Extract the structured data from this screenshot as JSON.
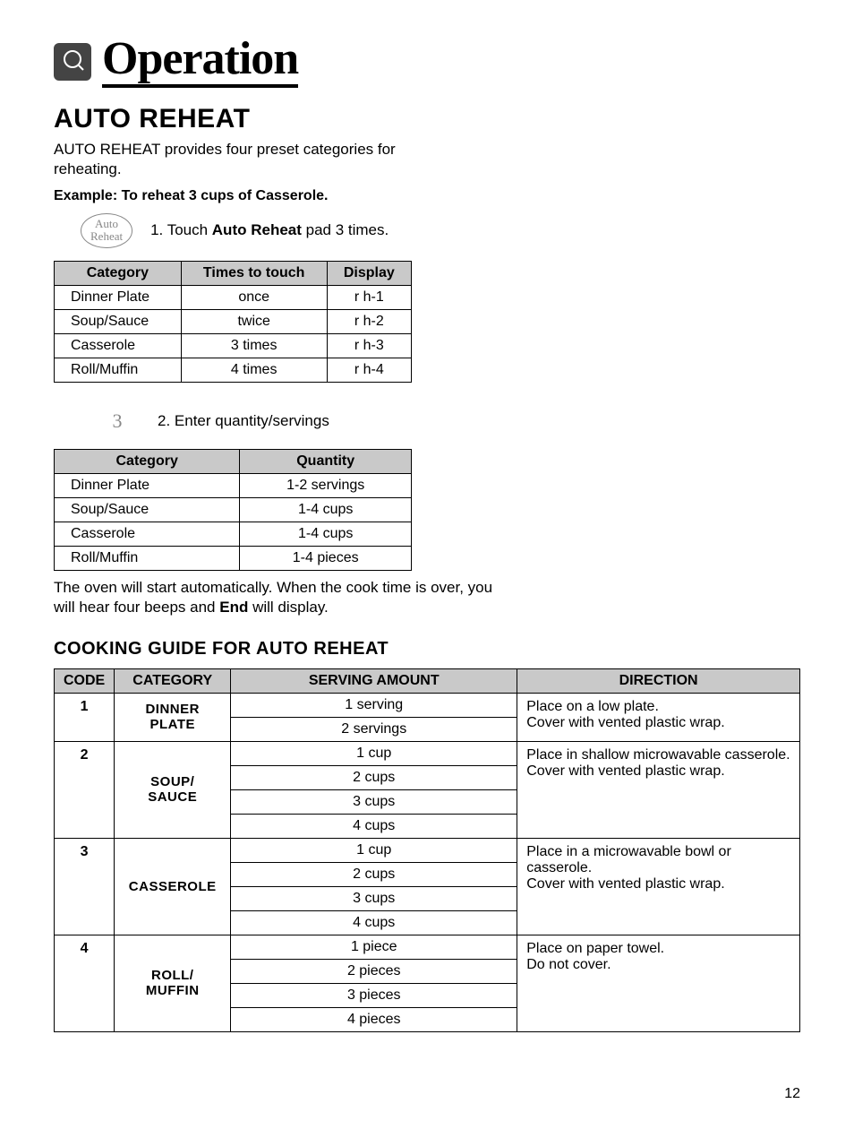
{
  "header": {
    "title": "Operation"
  },
  "section": {
    "title": "AUTO REHEAT",
    "intro": "AUTO REHEAT provides four preset categories for reheating.",
    "example_label": "Example: To reheat 3 cups of Casserole.",
    "step1_prefix": "1. Touch ",
    "step1_bold": "Auto Reheat",
    "step1_suffix": " pad 3 times.",
    "pad_label_line1": "Auto",
    "pad_label_line2": "Reheat",
    "step2_key": "3",
    "step2_text": "2. Enter quantity/servings",
    "after_prefix": "The oven will start automatically. When the cook time is over, you will hear four beeps and ",
    "after_bold": "End",
    "after_suffix": " will display."
  },
  "table1": {
    "headers": [
      "Category",
      "Times to touch",
      "Display"
    ],
    "rows": [
      [
        "Dinner Plate",
        "once",
        "r h-1"
      ],
      [
        "Soup/Sauce",
        "twice",
        "r h-2"
      ],
      [
        "Casserole",
        "3 times",
        "r h-3"
      ],
      [
        "Roll/Muffin",
        "4 times",
        "r h-4"
      ]
    ]
  },
  "table2": {
    "headers": [
      "Category",
      "Quantity"
    ],
    "rows": [
      [
        "Dinner Plate",
        "1-2 servings"
      ],
      [
        "Soup/Sauce",
        "1-4 cups"
      ],
      [
        "Casserole",
        "1-4 cups"
      ],
      [
        "Roll/Muffin",
        "1-4 pieces"
      ]
    ]
  },
  "guide": {
    "title": "COOKING GUIDE FOR AUTO REHEAT",
    "headers": [
      "CODE",
      "CATEGORY",
      "SERVING AMOUNT",
      "DIRECTION"
    ],
    "groups": [
      {
        "code": "1",
        "category_l1": "DINNER",
        "category_l2": "PLATE",
        "servings": [
          "1 serving",
          "2 servings"
        ],
        "direction_l1": "Place on a low plate.",
        "direction_l2": "Cover with vented plastic wrap."
      },
      {
        "code": "2",
        "category_l1": "SOUP/",
        "category_l2": "SAUCE",
        "servings": [
          "1 cup",
          "2 cups",
          "3 cups",
          "4 cups"
        ],
        "direction_l1": "Place in shallow microwavable casserole.",
        "direction_l2": "Cover with vented plastic wrap."
      },
      {
        "code": "3",
        "category_l1": "CASSEROLE",
        "category_l2": "",
        "servings": [
          "1 cup",
          "2 cups",
          "3 cups",
          "4 cups"
        ],
        "direction_l1": "Place in a microwavable bowl or casserole.",
        "direction_l2": "Cover with vented plastic wrap."
      },
      {
        "code": "4",
        "category_l1": "ROLL/",
        "category_l2": "MUFFIN",
        "servings": [
          "1 piece",
          "2 pieces",
          "3 pieces",
          "4 pieces"
        ],
        "direction_l1": "Place on paper towel.",
        "direction_l2": "Do not cover."
      }
    ]
  },
  "page_number": "12"
}
